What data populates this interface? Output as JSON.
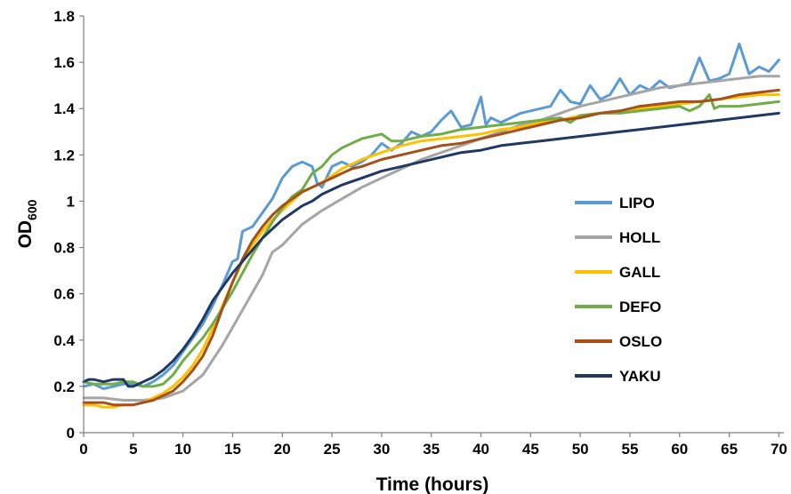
{
  "chart_data": {
    "type": "line",
    "title": "",
    "xlabel": "Time (hours)",
    "ylabel_main": "OD",
    "ylabel_sub": "600",
    "xlim": [
      0,
      70.5
    ],
    "ylim": [
      0,
      1.8
    ],
    "xticks": [
      0,
      5,
      10,
      15,
      20,
      25,
      30,
      35,
      40,
      45,
      50,
      55,
      60,
      65,
      70
    ],
    "yticks": [
      0,
      0.2,
      0.4,
      0.6,
      0.8,
      1,
      1.2,
      1.4,
      1.6,
      1.8
    ],
    "ytick_labels": [
      "0",
      "0.2",
      "0.4",
      "0.6",
      "0.8",
      "1",
      "1.2",
      "1.4",
      "1.6",
      "1.8"
    ],
    "grid": false,
    "legend_position": "right",
    "series": [
      {
        "name": "LIPO",
        "color": "#5B9BD5",
        "points": [
          [
            0,
            0.2
          ],
          [
            1,
            0.21
          ],
          [
            2,
            0.19
          ],
          [
            3,
            0.2
          ],
          [
            4,
            0.21
          ],
          [
            5,
            0.21
          ],
          [
            6,
            0.2
          ],
          [
            7,
            0.22
          ],
          [
            8,
            0.25
          ],
          [
            9,
            0.29
          ],
          [
            10,
            0.35
          ],
          [
            11,
            0.41
          ],
          [
            12,
            0.47
          ],
          [
            13,
            0.55
          ],
          [
            14,
            0.64
          ],
          [
            15,
            0.74
          ],
          [
            15.5,
            0.75
          ],
          [
            16,
            0.87
          ],
          [
            17,
            0.89
          ],
          [
            18,
            0.95
          ],
          [
            19,
            1.01
          ],
          [
            20,
            1.1
          ],
          [
            21,
            1.15
          ],
          [
            22,
            1.17
          ],
          [
            23,
            1.15
          ],
          [
            23.5,
            1.08
          ],
          [
            24,
            1.06
          ],
          [
            25,
            1.15
          ],
          [
            26,
            1.17
          ],
          [
            27,
            1.15
          ],
          [
            28,
            1.17
          ],
          [
            29,
            1.2
          ],
          [
            30,
            1.25
          ],
          [
            31,
            1.22
          ],
          [
            32,
            1.25
          ],
          [
            33,
            1.3
          ],
          [
            34,
            1.28
          ],
          [
            35,
            1.3
          ],
          [
            36,
            1.35
          ],
          [
            37,
            1.39
          ],
          [
            38,
            1.32
          ],
          [
            39,
            1.33
          ],
          [
            40,
            1.45
          ],
          [
            40.5,
            1.33
          ],
          [
            41,
            1.36
          ],
          [
            42,
            1.34
          ],
          [
            43,
            1.36
          ],
          [
            44,
            1.38
          ],
          [
            45,
            1.39
          ],
          [
            46,
            1.4
          ],
          [
            47,
            1.41
          ],
          [
            48,
            1.48
          ],
          [
            49,
            1.43
          ],
          [
            50,
            1.42
          ],
          [
            51,
            1.5
          ],
          [
            52,
            1.44
          ],
          [
            53,
            1.46
          ],
          [
            54,
            1.53
          ],
          [
            55,
            1.46
          ],
          [
            56,
            1.5
          ],
          [
            57,
            1.48
          ],
          [
            58,
            1.52
          ],
          [
            59,
            1.49
          ],
          [
            60,
            1.5
          ],
          [
            61,
            1.51
          ],
          [
            62,
            1.62
          ],
          [
            63,
            1.52
          ],
          [
            64,
            1.53
          ],
          [
            65,
            1.55
          ],
          [
            66,
            1.68
          ],
          [
            67,
            1.55
          ],
          [
            68,
            1.58
          ],
          [
            69,
            1.56
          ],
          [
            70,
            1.61
          ]
        ]
      },
      {
        "name": "HOLL",
        "color": "#A5A5A5",
        "points": [
          [
            0,
            0.15
          ],
          [
            2,
            0.15
          ],
          [
            4,
            0.14
          ],
          [
            6,
            0.14
          ],
          [
            8,
            0.15
          ],
          [
            10,
            0.18
          ],
          [
            12,
            0.25
          ],
          [
            14,
            0.38
          ],
          [
            16,
            0.53
          ],
          [
            18,
            0.68
          ],
          [
            19,
            0.78
          ],
          [
            20,
            0.81
          ],
          [
            22,
            0.9
          ],
          [
            24,
            0.96
          ],
          [
            26,
            1.01
          ],
          [
            28,
            1.06
          ],
          [
            30,
            1.1
          ],
          [
            32,
            1.14
          ],
          [
            34,
            1.18
          ],
          [
            36,
            1.21
          ],
          [
            38,
            1.24
          ],
          [
            40,
            1.27
          ],
          [
            42,
            1.3
          ],
          [
            44,
            1.33
          ],
          [
            46,
            1.35
          ],
          [
            48,
            1.38
          ],
          [
            50,
            1.41
          ],
          [
            52,
            1.43
          ],
          [
            54,
            1.45
          ],
          [
            56,
            1.47
          ],
          [
            58,
            1.49
          ],
          [
            60,
            1.5
          ],
          [
            62,
            1.51
          ],
          [
            64,
            1.52
          ],
          [
            66,
            1.53
          ],
          [
            68,
            1.54
          ],
          [
            70,
            1.54
          ]
        ]
      },
      {
        "name": "GALL",
        "color": "#FFC000",
        "points": [
          [
            0,
            0.12
          ],
          [
            1,
            0.12
          ],
          [
            2,
            0.11
          ],
          [
            3,
            0.11
          ],
          [
            4,
            0.12
          ],
          [
            5,
            0.12
          ],
          [
            6,
            0.13
          ],
          [
            7,
            0.15
          ],
          [
            8,
            0.17
          ],
          [
            9,
            0.2
          ],
          [
            10,
            0.24
          ],
          [
            11,
            0.29
          ],
          [
            12,
            0.36
          ],
          [
            13,
            0.45
          ],
          [
            14,
            0.55
          ],
          [
            15,
            0.65
          ],
          [
            16,
            0.74
          ],
          [
            17,
            0.81
          ],
          [
            18,
            0.87
          ],
          [
            19,
            0.92
          ],
          [
            20,
            0.96
          ],
          [
            21,
            1.0
          ],
          [
            22,
            1.04
          ],
          [
            23,
            1.06
          ],
          [
            24,
            1.08
          ],
          [
            25,
            1.11
          ],
          [
            26,
            1.14
          ],
          [
            27,
            1.16
          ],
          [
            28,
            1.18
          ],
          [
            30,
            1.21
          ],
          [
            32,
            1.24
          ],
          [
            34,
            1.26
          ],
          [
            36,
            1.27
          ],
          [
            38,
            1.28
          ],
          [
            40,
            1.29
          ],
          [
            42,
            1.31
          ],
          [
            44,
            1.32
          ],
          [
            46,
            1.34
          ],
          [
            48,
            1.35
          ],
          [
            50,
            1.37
          ],
          [
            52,
            1.38
          ],
          [
            54,
            1.39
          ],
          [
            56,
            1.4
          ],
          [
            58,
            1.41
          ],
          [
            60,
            1.42
          ],
          [
            62,
            1.43
          ],
          [
            64,
            1.44
          ],
          [
            66,
            1.45
          ],
          [
            68,
            1.46
          ],
          [
            70,
            1.46
          ]
        ]
      },
      {
        "name": "DEFO",
        "color": "#70AD47",
        "points": [
          [
            0,
            0.22
          ],
          [
            1,
            0.21
          ],
          [
            2,
            0.21
          ],
          [
            3,
            0.21
          ],
          [
            4,
            0.22
          ],
          [
            5,
            0.22
          ],
          [
            6,
            0.2
          ],
          [
            7,
            0.2
          ],
          [
            8,
            0.21
          ],
          [
            9,
            0.25
          ],
          [
            10,
            0.31
          ],
          [
            11,
            0.36
          ],
          [
            12,
            0.41
          ],
          [
            13,
            0.47
          ],
          [
            14,
            0.54
          ],
          [
            15,
            0.61
          ],
          [
            16,
            0.69
          ],
          [
            17,
            0.77
          ],
          [
            18,
            0.84
          ],
          [
            19,
            0.91
          ],
          [
            20,
            0.97
          ],
          [
            21,
            1.02
          ],
          [
            22,
            1.05
          ],
          [
            23,
            1.12
          ],
          [
            24,
            1.15
          ],
          [
            25,
            1.2
          ],
          [
            26,
            1.23
          ],
          [
            27,
            1.25
          ],
          [
            28,
            1.27
          ],
          [
            29,
            1.28
          ],
          [
            30,
            1.29
          ],
          [
            31,
            1.26
          ],
          [
            32,
            1.26
          ],
          [
            33,
            1.27
          ],
          [
            34,
            1.28
          ],
          [
            36,
            1.29
          ],
          [
            38,
            1.31
          ],
          [
            40,
            1.32
          ],
          [
            42,
            1.33
          ],
          [
            44,
            1.34
          ],
          [
            46,
            1.35
          ],
          [
            48,
            1.36
          ],
          [
            49,
            1.34
          ],
          [
            50,
            1.37
          ],
          [
            52,
            1.38
          ],
          [
            54,
            1.38
          ],
          [
            56,
            1.39
          ],
          [
            58,
            1.4
          ],
          [
            60,
            1.41
          ],
          [
            61,
            1.39
          ],
          [
            62,
            1.41
          ],
          [
            63,
            1.46
          ],
          [
            63.5,
            1.4
          ],
          [
            64,
            1.41
          ],
          [
            66,
            1.41
          ],
          [
            68,
            1.42
          ],
          [
            70,
            1.43
          ]
        ]
      },
      {
        "name": "OSLO",
        "color": "#A5501B",
        "points": [
          [
            0,
            0.13
          ],
          [
            1,
            0.13
          ],
          [
            2,
            0.13
          ],
          [
            3,
            0.12
          ],
          [
            4,
            0.12
          ],
          [
            5,
            0.12
          ],
          [
            6,
            0.13
          ],
          [
            7,
            0.14
          ],
          [
            8,
            0.16
          ],
          [
            9,
            0.18
          ],
          [
            10,
            0.22
          ],
          [
            11,
            0.27
          ],
          [
            12,
            0.33
          ],
          [
            13,
            0.42
          ],
          [
            14,
            0.54
          ],
          [
            15,
            0.65
          ],
          [
            16,
            0.75
          ],
          [
            17,
            0.83
          ],
          [
            18,
            0.89
          ],
          [
            19,
            0.94
          ],
          [
            20,
            0.98
          ],
          [
            21,
            1.01
          ],
          [
            22,
            1.04
          ],
          [
            23,
            1.06
          ],
          [
            24,
            1.08
          ],
          [
            25,
            1.1
          ],
          [
            26,
            1.12
          ],
          [
            27,
            1.14
          ],
          [
            28,
            1.15
          ],
          [
            30,
            1.18
          ],
          [
            32,
            1.2
          ],
          [
            34,
            1.22
          ],
          [
            36,
            1.24
          ],
          [
            38,
            1.25
          ],
          [
            40,
            1.27
          ],
          [
            42,
            1.29
          ],
          [
            44,
            1.31
          ],
          [
            46,
            1.33
          ],
          [
            48,
            1.35
          ],
          [
            50,
            1.36
          ],
          [
            52,
            1.38
          ],
          [
            54,
            1.39
          ],
          [
            56,
            1.41
          ],
          [
            58,
            1.42
          ],
          [
            60,
            1.43
          ],
          [
            62,
            1.43
          ],
          [
            64,
            1.44
          ],
          [
            66,
            1.46
          ],
          [
            68,
            1.47
          ],
          [
            70,
            1.48
          ]
        ]
      },
      {
        "name": "YAKU",
        "color": "#203864",
        "points": [
          [
            0,
            0.22
          ],
          [
            0.5,
            0.23
          ],
          [
            1,
            0.23
          ],
          [
            2,
            0.22
          ],
          [
            3,
            0.23
          ],
          [
            4,
            0.23
          ],
          [
            4.5,
            0.2
          ],
          [
            5,
            0.2
          ],
          [
            6,
            0.22
          ],
          [
            7,
            0.24
          ],
          [
            8,
            0.27
          ],
          [
            9,
            0.31
          ],
          [
            10,
            0.36
          ],
          [
            11,
            0.42
          ],
          [
            12,
            0.49
          ],
          [
            13,
            0.57
          ],
          [
            14,
            0.63
          ],
          [
            15,
            0.69
          ],
          [
            16,
            0.74
          ],
          [
            17,
            0.79
          ],
          [
            18,
            0.84
          ],
          [
            19,
            0.88
          ],
          [
            20,
            0.92
          ],
          [
            21,
            0.95
          ],
          [
            22,
            0.98
          ],
          [
            23,
            1.0
          ],
          [
            24,
            1.03
          ],
          [
            25,
            1.05
          ],
          [
            26,
            1.07
          ],
          [
            28,
            1.1
          ],
          [
            30,
            1.13
          ],
          [
            32,
            1.15
          ],
          [
            34,
            1.17
          ],
          [
            36,
            1.19
          ],
          [
            38,
            1.21
          ],
          [
            40,
            1.22
          ],
          [
            42,
            1.24
          ],
          [
            44,
            1.25
          ],
          [
            46,
            1.26
          ],
          [
            48,
            1.27
          ],
          [
            50,
            1.28
          ],
          [
            52,
            1.29
          ],
          [
            54,
            1.3
          ],
          [
            56,
            1.31
          ],
          [
            58,
            1.32
          ],
          [
            60,
            1.33
          ],
          [
            62,
            1.34
          ],
          [
            64,
            1.35
          ],
          [
            66,
            1.36
          ],
          [
            68,
            1.37
          ],
          [
            70,
            1.38
          ]
        ]
      }
    ]
  }
}
